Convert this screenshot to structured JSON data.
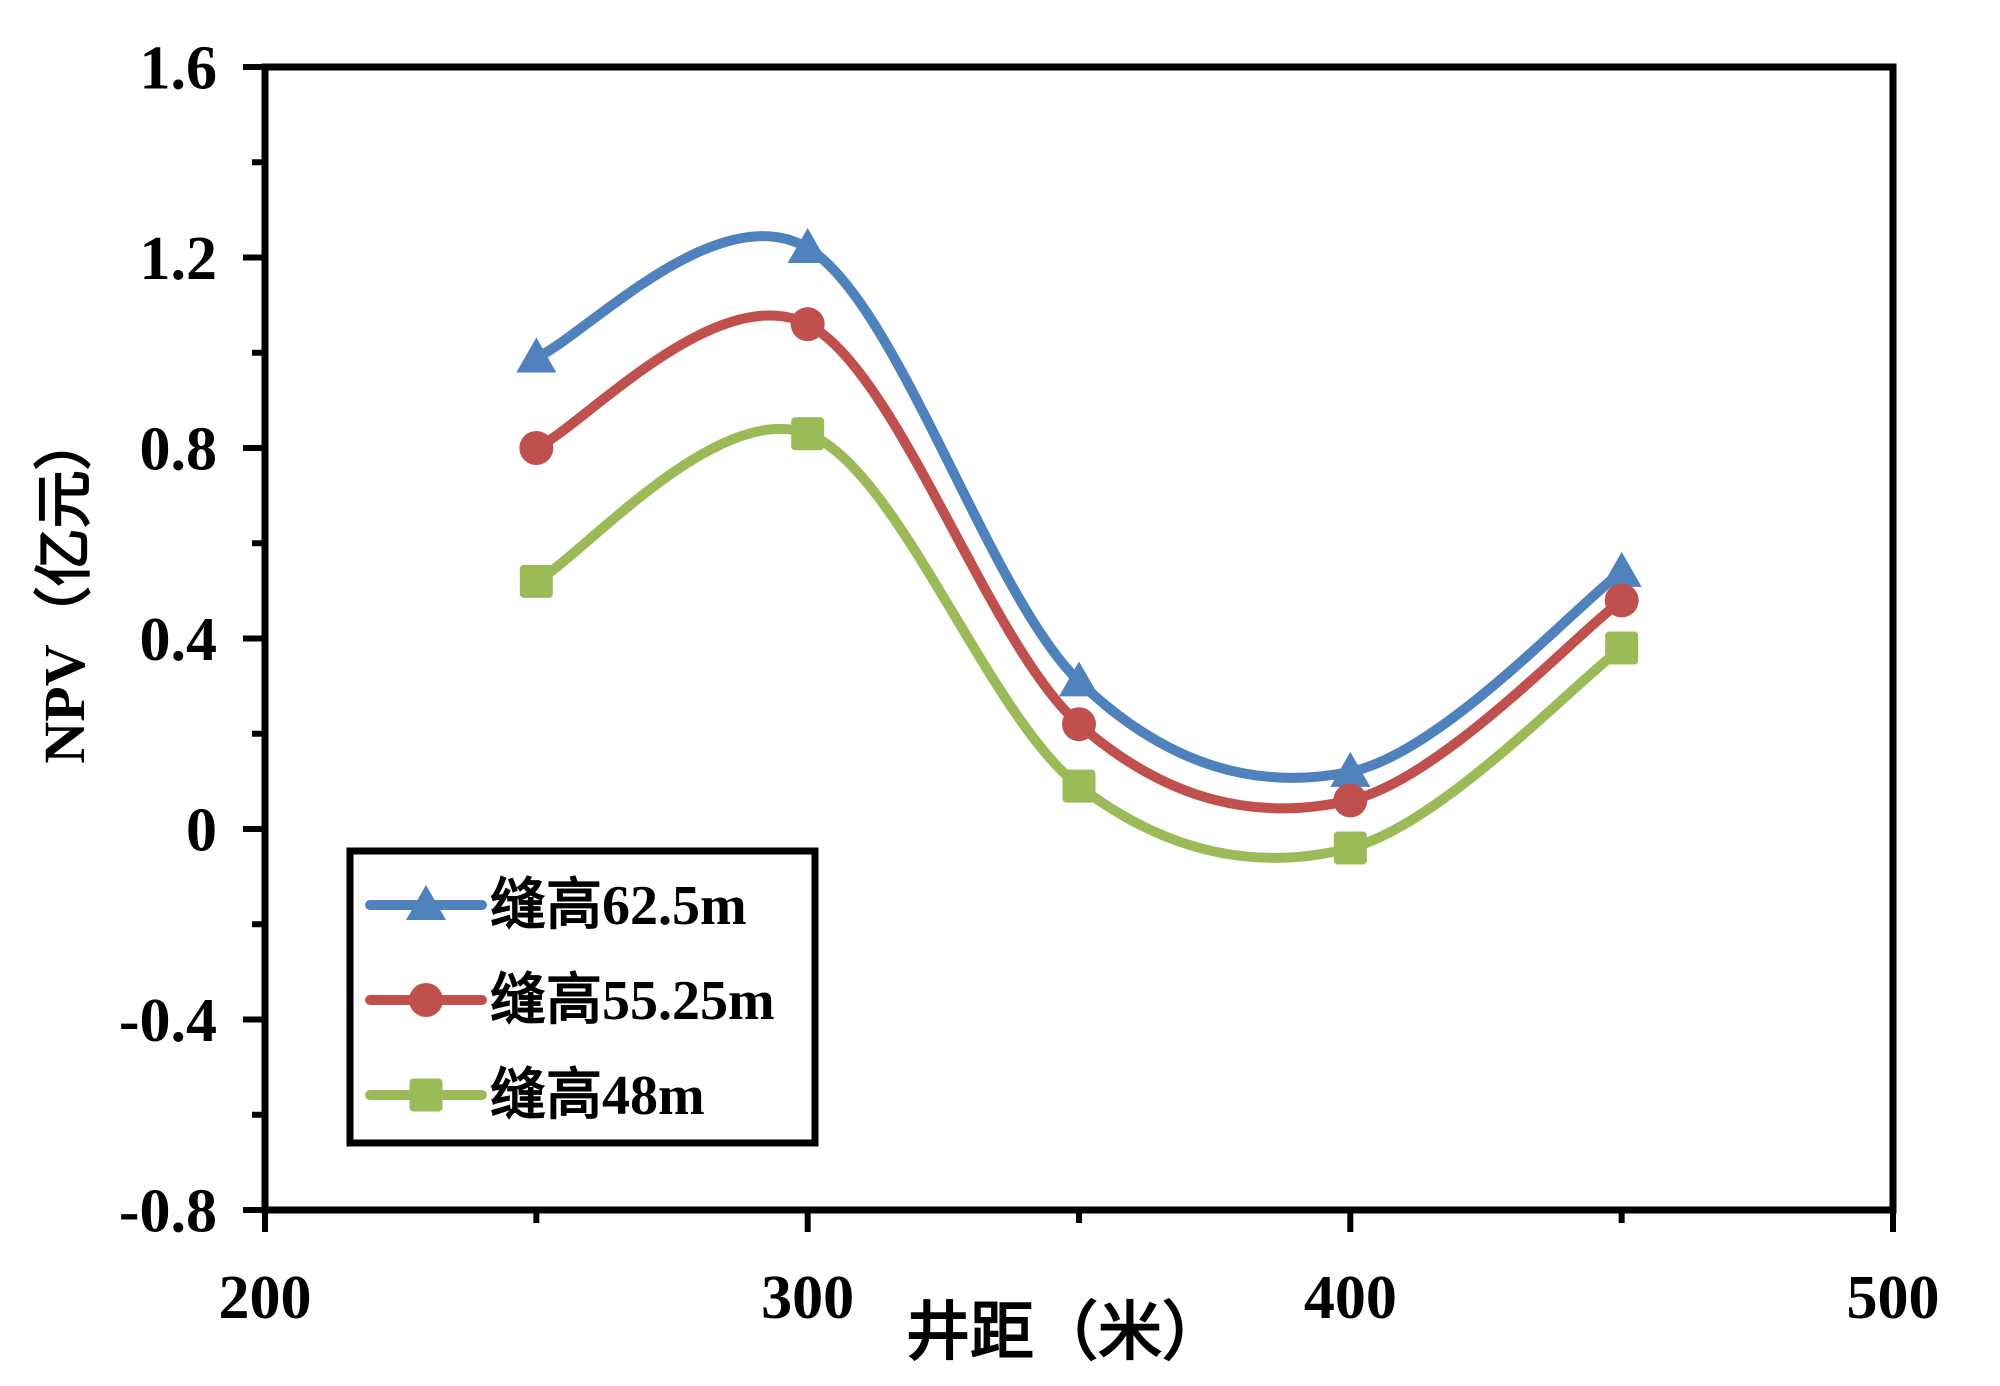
{
  "chart_data": {
    "type": "line",
    "title": "",
    "xlabel": "井距（米）",
    "ylabel": "NPV（亿元）",
    "x": [
      250,
      300,
      350,
      400,
      450
    ],
    "series": [
      {
        "name": "缝高62.5m",
        "color": "#4F81BD",
        "marker": "triangle",
        "values": [
          0.99,
          1.22,
          0.31,
          0.12,
          0.54
        ]
      },
      {
        "name": "缝高55.25m",
        "color": "#C0504D",
        "marker": "circle",
        "values": [
          0.8,
          1.06,
          0.22,
          0.06,
          0.48
        ]
      },
      {
        "name": "缝高48m",
        "color": "#9BBB59",
        "marker": "square",
        "values": [
          0.52,
          0.83,
          0.09,
          -0.04,
          0.38
        ]
      }
    ],
    "xlim": [
      200,
      500
    ],
    "ylim": [
      -0.8,
      1.6
    ],
    "x_major_ticks": [
      200,
      300,
      400,
      500
    ],
    "x_minor_ticks": [
      250,
      350,
      450
    ],
    "y_major_ticks": [
      -0.8,
      -0.4,
      0,
      0.4,
      0.8,
      1.2,
      1.6
    ],
    "y_minor_ticks": [
      -0.6,
      -0.2,
      0.2,
      0.6,
      1.0,
      1.4
    ],
    "x_tick_labels": [
      "200",
      "300",
      "400",
      "500"
    ],
    "y_tick_labels": [
      "-0.8",
      "-0.4",
      "0",
      "0.4",
      "0.8",
      "1.2",
      "1.6"
    ],
    "grid": false,
    "smoothed_lines": true,
    "legend_position": "lower-left",
    "axis_color": "#000000",
    "background_color": "#FFFFFF"
  }
}
